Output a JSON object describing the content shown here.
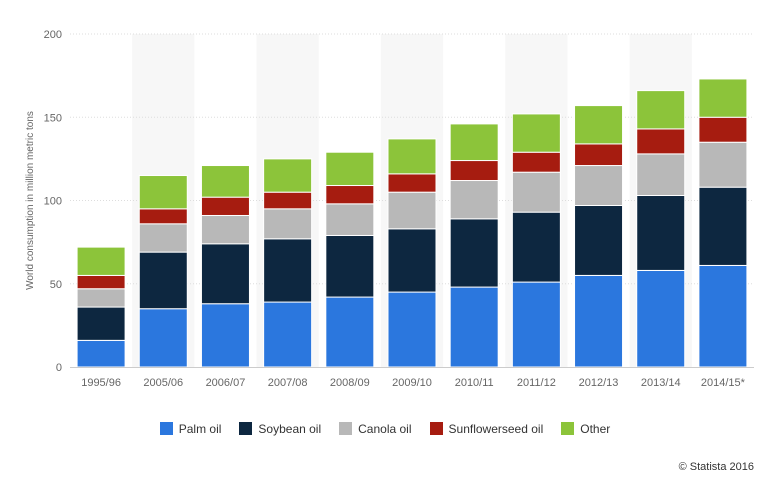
{
  "chart_data": {
    "type": "bar",
    "stacked": true,
    "categories": [
      "1995/96",
      "2005/06",
      "2006/07",
      "2007/08",
      "2008/09",
      "2009/10",
      "2010/11",
      "2011/12",
      "2012/13",
      "2013/14",
      "2014/15*"
    ],
    "series": [
      {
        "name": "Palm oil",
        "color": "#2b77de",
        "values": [
          16,
          35,
          38,
          39,
          42,
          45,
          48,
          51,
          55,
          58,
          61
        ]
      },
      {
        "name": "Soybean oil",
        "color": "#0d2740",
        "values": [
          20,
          34,
          36,
          38,
          37,
          38,
          41,
          42,
          42,
          45,
          47
        ]
      },
      {
        "name": "Canola oil",
        "color": "#b8b8b8",
        "values": [
          11,
          17,
          17,
          18,
          19,
          22,
          23,
          24,
          24,
          25,
          27
        ]
      },
      {
        "name": "Sunflowerseed oil",
        "color": "#a61c10",
        "values": [
          8,
          9,
          11,
          10,
          11,
          11,
          12,
          12,
          13,
          15,
          15
        ]
      },
      {
        "name": "Other",
        "color": "#8cc43a",
        "values": [
          17,
          20,
          19,
          20,
          20,
          21,
          22,
          23,
          23,
          23,
          23
        ]
      }
    ],
    "ylabel": "World consumption in million metric tons",
    "xlabel": "",
    "ylim": [
      0,
      200
    ],
    "yticks": [
      0,
      50,
      100,
      150,
      200
    ],
    "grid": true,
    "legend": "bottom"
  },
  "credit": "© Statista 2016"
}
